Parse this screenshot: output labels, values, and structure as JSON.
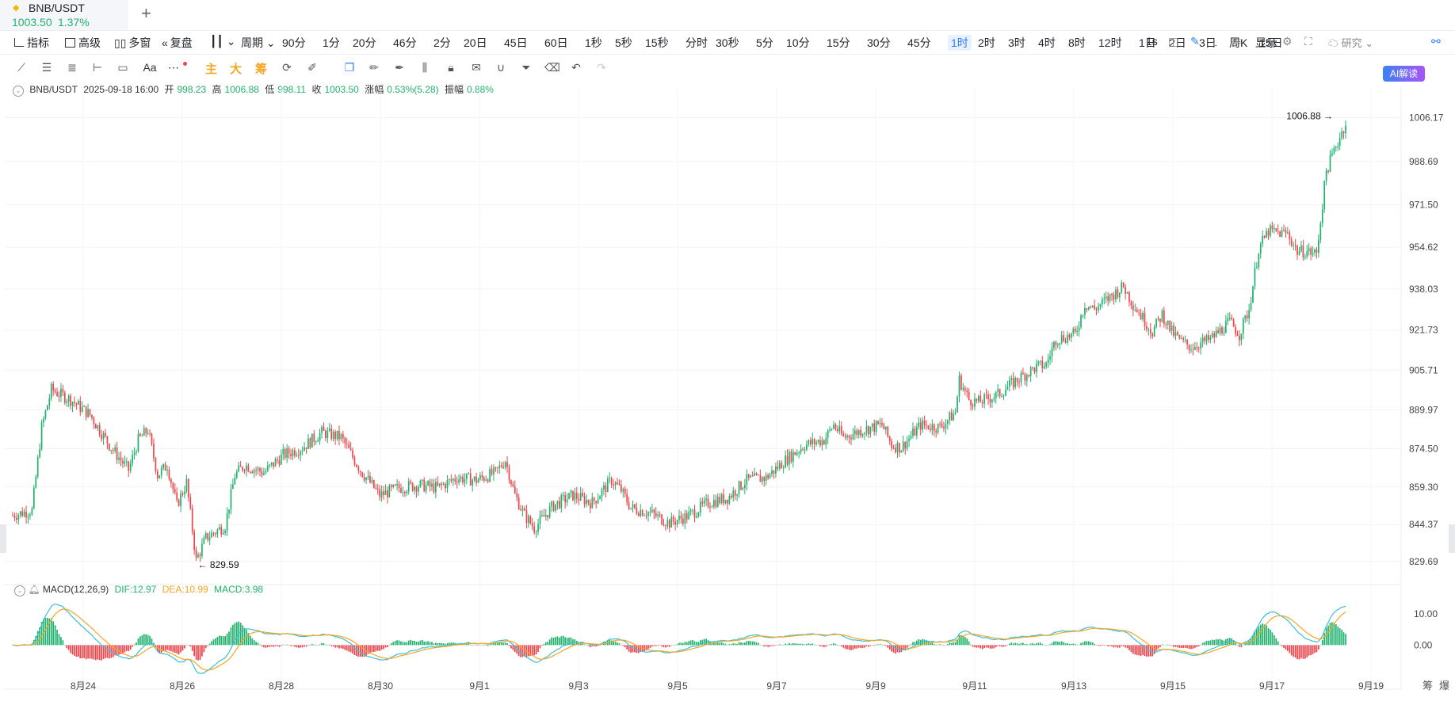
{
  "tab": {
    "symbol": "BNB/USDT",
    "price": "1003.50",
    "change": "1.37%"
  },
  "toolbar": {
    "left_items": [
      "指标",
      "高级",
      "多窗",
      "复盘"
    ],
    "period_label": "周期",
    "periods": [
      "90分",
      "1分",
      "20分",
      "46分",
      "2分",
      "20日",
      "45日",
      "60日",
      "1秒",
      "5秒",
      "15秒",
      "分时",
      "30秒",
      "5分",
      "10分",
      "15分",
      "30分",
      "45分",
      "1时",
      "2时",
      "3时",
      "4时",
      "8时",
      "12时",
      "1日",
      "2日",
      "3日",
      "周K",
      "15日"
    ],
    "active_period": "1时",
    "right_items": {
      "seconds": "1s",
      "display": "显示",
      "research": "研究",
      "ai": "AI解读"
    }
  },
  "drawing_tools": {
    "text_tool": "Aa",
    "main": "主",
    "big": "大",
    "chip": "筹"
  },
  "info": {
    "symbol": "BNB/USDT",
    "datetime": "2025-09-18 16:00",
    "open_label": "开",
    "open": "998.23",
    "high_label": "高",
    "high": "1006.88",
    "low_label": "低",
    "low": "998.11",
    "close_label": "收",
    "close": "1003.50",
    "change_label": "涨幅",
    "change": "0.53%(5.28)",
    "amp_label": "振幅",
    "amp": "0.88%"
  },
  "macd_info": {
    "label": "MACD(12,26,9)",
    "dif": "DIF:12.97",
    "dea": "DEA:10.99",
    "macd": "MACD:3.98"
  },
  "chip_labels": [
    "筹",
    "爆"
  ],
  "colors": {
    "up": "#20b26c",
    "down": "#f0444a",
    "dif": "#3bbfd6",
    "dea": "#f5a623",
    "active": "#2f7cf6"
  },
  "chart_data": {
    "type": "candlestick",
    "price_axis_ticks": [
      "1006.17",
      "988.69",
      "971.50",
      "954.62",
      "938.03",
      "921.73",
      "905.71",
      "889.97",
      "874.50",
      "859.30",
      "844.37",
      "829.69"
    ],
    "ylim": [
      823,
      1012
    ],
    "macd_axis_ticks": [
      "10.00",
      "0.00"
    ],
    "macd_ylim": [
      -9,
      15
    ],
    "x_ticks": [
      "8月24",
      "8月26",
      "8月28",
      "8月30",
      "9月1",
      "9月3",
      "9月5",
      "9月7",
      "9月9",
      "9月11",
      "9月13",
      "9月15",
      "9月17",
      "9月19"
    ],
    "annotations": {
      "high": "1006.88",
      "low": "829.59"
    },
    "series_path": [
      [
        0,
        848
      ],
      [
        10,
        850
      ],
      [
        15,
        883
      ],
      [
        20,
        898
      ],
      [
        30,
        894
      ],
      [
        40,
        888
      ],
      [
        50,
        876
      ],
      [
        60,
        866
      ],
      [
        65,
        878
      ],
      [
        70,
        882
      ],
      [
        75,
        864
      ],
      [
        80,
        868
      ],
      [
        85,
        852
      ],
      [
        90,
        861
      ],
      [
        95,
        830
      ],
      [
        100,
        839
      ],
      [
        110,
        844
      ],
      [
        115,
        864
      ],
      [
        120,
        868
      ],
      [
        130,
        865
      ],
      [
        140,
        872
      ],
      [
        150,
        875
      ],
      [
        160,
        881
      ],
      [
        170,
        879
      ],
      [
        180,
        866
      ],
      [
        190,
        856
      ],
      [
        200,
        859
      ],
      [
        210,
        860
      ],
      [
        220,
        859
      ],
      [
        230,
        863
      ],
      [
        240,
        862
      ],
      [
        250,
        865
      ],
      [
        255,
        870
      ],
      [
        260,
        856
      ],
      [
        265,
        848
      ],
      [
        270,
        843
      ],
      [
        280,
        852
      ],
      [
        290,
        856
      ],
      [
        300,
        853
      ],
      [
        310,
        862
      ],
      [
        315,
        858
      ],
      [
        320,
        851
      ],
      [
        330,
        849
      ],
      [
        340,
        845
      ],
      [
        350,
        848
      ],
      [
        360,
        853
      ],
      [
        370,
        855
      ],
      [
        380,
        862
      ],
      [
        390,
        863
      ],
      [
        400,
        870
      ],
      [
        410,
        876
      ],
      [
        420,
        878
      ],
      [
        425,
        884
      ],
      [
        430,
        879
      ],
      [
        440,
        882
      ],
      [
        450,
        884
      ],
      [
        455,
        876
      ],
      [
        460,
        875
      ],
      [
        470,
        884
      ],
      [
        480,
        883
      ],
      [
        488,
        889
      ],
      [
        490,
        902
      ],
      [
        495,
        894
      ],
      [
        500,
        893
      ],
      [
        510,
        896
      ],
      [
        520,
        902
      ],
      [
        530,
        907
      ],
      [
        535,
        908
      ],
      [
        540,
        918
      ],
      [
        550,
        920
      ],
      [
        555,
        932
      ],
      [
        560,
        930
      ],
      [
        570,
        936
      ],
      [
        575,
        939
      ],
      [
        580,
        932
      ],
      [
        590,
        921
      ],
      [
        595,
        928
      ],
      [
        600,
        921
      ],
      [
        605,
        917
      ],
      [
        610,
        915
      ],
      [
        620,
        918
      ],
      [
        630,
        925
      ],
      [
        635,
        920
      ],
      [
        640,
        930
      ],
      [
        645,
        954
      ],
      [
        650,
        961
      ],
      [
        660,
        960
      ],
      [
        665,
        953
      ],
      [
        670,
        953
      ],
      [
        675,
        952
      ],
      [
        680,
        985
      ],
      [
        685,
        995
      ],
      [
        690,
        1004
      ]
    ]
  }
}
